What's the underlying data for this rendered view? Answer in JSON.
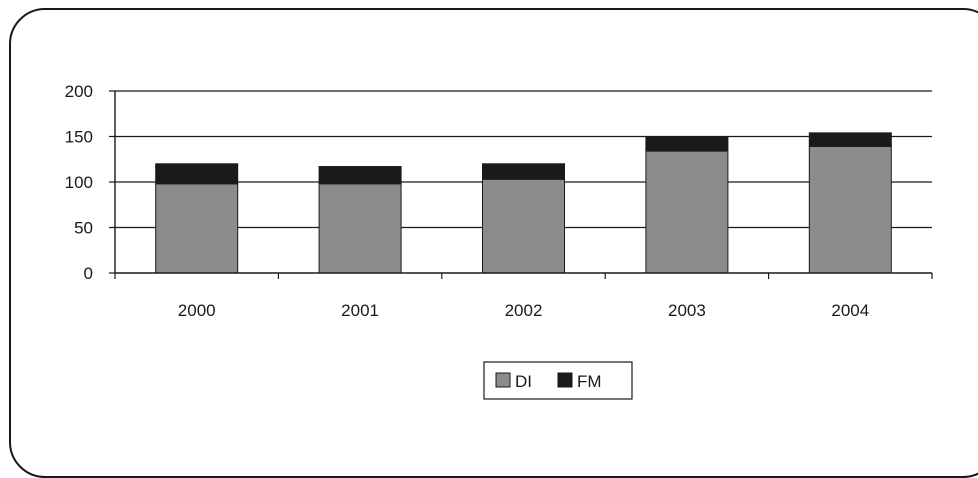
{
  "chart_data": {
    "type": "bar",
    "stacked": true,
    "categories": [
      "2000",
      "2001",
      "2002",
      "2003",
      "2004"
    ],
    "series": [
      {
        "name": "DI",
        "values": [
          98,
          98,
          103,
          134,
          139
        ],
        "color": "#8c8c8c"
      },
      {
        "name": "FM",
        "values": [
          22,
          19,
          17,
          15,
          15
        ],
        "color": "#1a1a1a"
      }
    ],
    "ylim": [
      0,
      200
    ],
    "yticks": [
      "0",
      "50",
      "100",
      "150",
      "200"
    ],
    "grid": true,
    "legend_position": "bottom-center"
  }
}
